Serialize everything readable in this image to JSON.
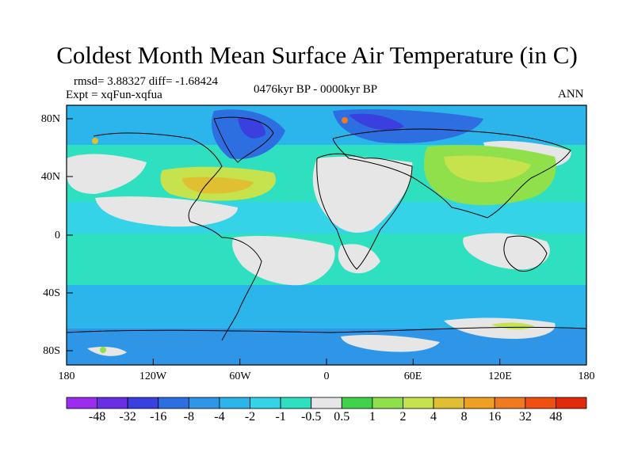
{
  "title": "Coldest Month Mean Surface Air Temperature (in C)",
  "rmsd_line": "rmsd= 3.88327 diff= -1.68424",
  "expt_line": "Expt = xqFun-xqfua",
  "period": "0476kyr BP - 0000kyr BP",
  "season": "ANN",
  "lat_labels": [
    "80N",
    "40N",
    "0",
    "40S",
    "80S"
  ],
  "lon_labels": [
    "180",
    "120W",
    "60W",
    "0",
    "60E",
    "120E",
    "180"
  ],
  "colorbar": {
    "labels": [
      "-48",
      "-32",
      "-16",
      "-8",
      "-4",
      "-2",
      "-1",
      "-0.5",
      "0.5",
      "1",
      "2",
      "4",
      "8",
      "16",
      "32",
      "48"
    ],
    "colors": [
      "#9b2df0",
      "#6a2ee6",
      "#3a3fe0",
      "#2d6fe0",
      "#2f95e6",
      "#2bb5ea",
      "#35d3e8",
      "#2fe0c0",
      "#e6e6e6",
      "#3fd24a",
      "#8fe04a",
      "#c6e24c",
      "#e0c030",
      "#f0a020",
      "#f07a20",
      "#f04f10",
      "#e02a0a"
    ]
  }
}
